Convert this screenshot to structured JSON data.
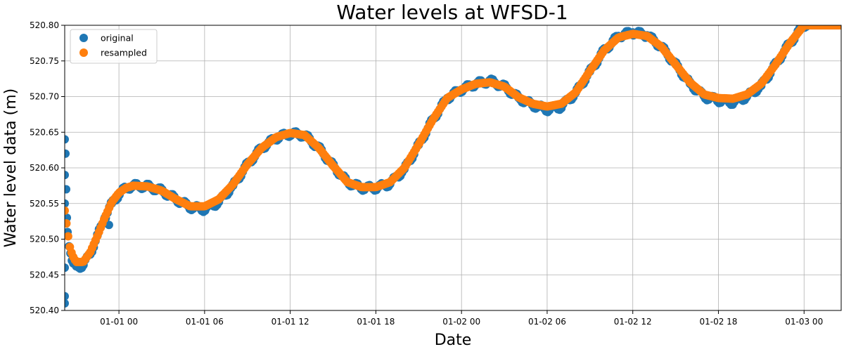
{
  "chart_data": {
    "type": "scatter",
    "title": "Water levels at WFSD-1",
    "xlabel": "Date",
    "ylabel": "Water level data (m)",
    "x_tick_labels": [
      "01-01 00",
      "01-01 06",
      "01-01 12",
      "01-01 18",
      "01-02 00",
      "01-02 06",
      "01-02 12",
      "01-02 18",
      "01-03 00"
    ],
    "x_tick_hours": [
      24,
      30,
      36,
      42,
      48,
      54,
      60,
      66,
      72
    ],
    "xlim_hours": [
      20.2,
      74.6
    ],
    "ylim": [
      520.4,
      520.8
    ],
    "yticks": [
      "520.40",
      "520.45",
      "520.50",
      "520.55",
      "520.60",
      "520.65",
      "520.70",
      "520.75",
      "520.80"
    ],
    "grid": true,
    "legend_position": "upper-left",
    "series": [
      {
        "name": "original",
        "color": "#1f77b4",
        "note_values": "denser noisy samples around the same curve plus scattered spikes near start",
        "x_hours": [
          20.2,
          20.2,
          20.2,
          20.2,
          20.2,
          20.2,
          20.25,
          20.3,
          20.35,
          20.4,
          20.5,
          20.6,
          20.7,
          20.8,
          21.0,
          21.5,
          22.0,
          22.5,
          23.0,
          23.5,
          24.0,
          24.5,
          25.0,
          26.0,
          27.0,
          28.0,
          29.0,
          30.0,
          31.0,
          32.0,
          33.0,
          34.0,
          35.0,
          36.0,
          37.0,
          38.0,
          39.0,
          40.0,
          41.0,
          42.0,
          43.0,
          44.0,
          45.0,
          46.0,
          47.0,
          48.0,
          49.0,
          50.0,
          51.0,
          52.0,
          53.0,
          54.0,
          55.0,
          56.0,
          57.0,
          58.0,
          59.0,
          60.0,
          61.0,
          62.0,
          63.0,
          64.0,
          65.0,
          66.0,
          67.0,
          68.0,
          69.0,
          70.0,
          71.0,
          72.0,
          73.0,
          74.0,
          23.3
        ],
        "y": [
          520.41,
          520.42,
          520.46,
          520.55,
          520.59,
          520.64,
          520.62,
          520.57,
          520.53,
          520.51,
          520.49,
          520.48,
          520.47,
          520.466,
          520.462,
          520.463,
          520.48,
          520.505,
          520.53,
          520.55,
          520.563,
          520.572,
          520.575,
          520.574,
          520.568,
          520.556,
          520.545,
          520.542,
          520.552,
          520.575,
          520.605,
          520.628,
          520.642,
          520.648,
          520.646,
          520.628,
          520.603,
          520.58,
          520.572,
          520.572,
          520.578,
          520.598,
          520.632,
          520.668,
          520.698,
          520.71,
          520.718,
          520.722,
          520.714,
          520.698,
          520.688,
          520.682,
          520.686,
          520.705,
          520.735,
          520.765,
          520.785,
          520.79,
          520.786,
          520.77,
          520.745,
          520.718,
          520.7,
          520.695,
          520.692,
          520.7,
          520.715,
          520.745,
          520.775,
          520.8,
          520.81,
          520.82,
          520.52
        ]
      },
      {
        "name": "resampled",
        "color": "#ff7f0e",
        "x_hours": [
          20.2,
          20.3,
          20.4,
          20.5,
          20.6,
          20.8,
          21.0,
          21.5,
          22.0,
          22.5,
          23.0,
          23.5,
          24.0,
          24.5,
          25.0,
          26.0,
          27.0,
          28.0,
          29.0,
          30.0,
          31.0,
          32.0,
          33.0,
          34.0,
          35.0,
          36.0,
          37.0,
          38.0,
          39.0,
          40.0,
          41.0,
          42.0,
          43.0,
          44.0,
          45.0,
          46.0,
          47.0,
          48.0,
          49.0,
          50.0,
          51.0,
          52.0,
          53.0,
          54.0,
          55.0,
          56.0,
          57.0,
          58.0,
          59.0,
          60.0,
          61.0,
          62.0,
          63.0,
          64.0,
          65.0,
          66.0,
          67.0,
          68.0,
          69.0,
          70.0,
          71.0,
          72.0,
          73.0,
          74.0
        ],
        "y": [
          520.54,
          520.525,
          520.51,
          520.495,
          520.485,
          520.475,
          520.468,
          520.468,
          520.482,
          520.505,
          520.53,
          520.552,
          520.565,
          520.572,
          520.575,
          520.574,
          520.568,
          520.556,
          520.546,
          520.546,
          520.556,
          520.577,
          520.605,
          520.628,
          520.643,
          520.649,
          520.646,
          520.628,
          520.603,
          520.58,
          520.573,
          520.573,
          520.58,
          520.6,
          520.633,
          520.668,
          520.698,
          520.71,
          520.718,
          520.72,
          520.714,
          520.699,
          520.69,
          520.686,
          520.69,
          520.706,
          520.736,
          520.765,
          520.783,
          520.788,
          520.785,
          520.77,
          520.745,
          520.72,
          520.703,
          520.698,
          520.697,
          520.703,
          520.718,
          520.745,
          520.775,
          520.8,
          520.812,
          520.822
        ]
      }
    ]
  }
}
